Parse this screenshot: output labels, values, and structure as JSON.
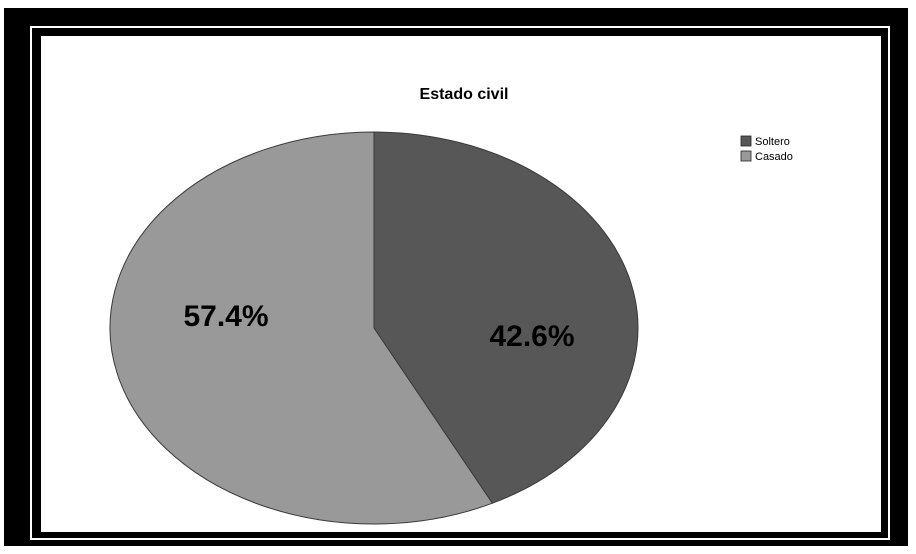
{
  "chart_data": {
    "type": "pie",
    "title": "Estado civil",
    "categories": [
      "Soltero",
      "Casado"
    ],
    "values": [
      42.6,
      57.4
    ],
    "labels": [
      "42.6%",
      "57.4%"
    ],
    "colors": [
      "#575757",
      "#999999"
    ],
    "legend_position": "top-right"
  }
}
